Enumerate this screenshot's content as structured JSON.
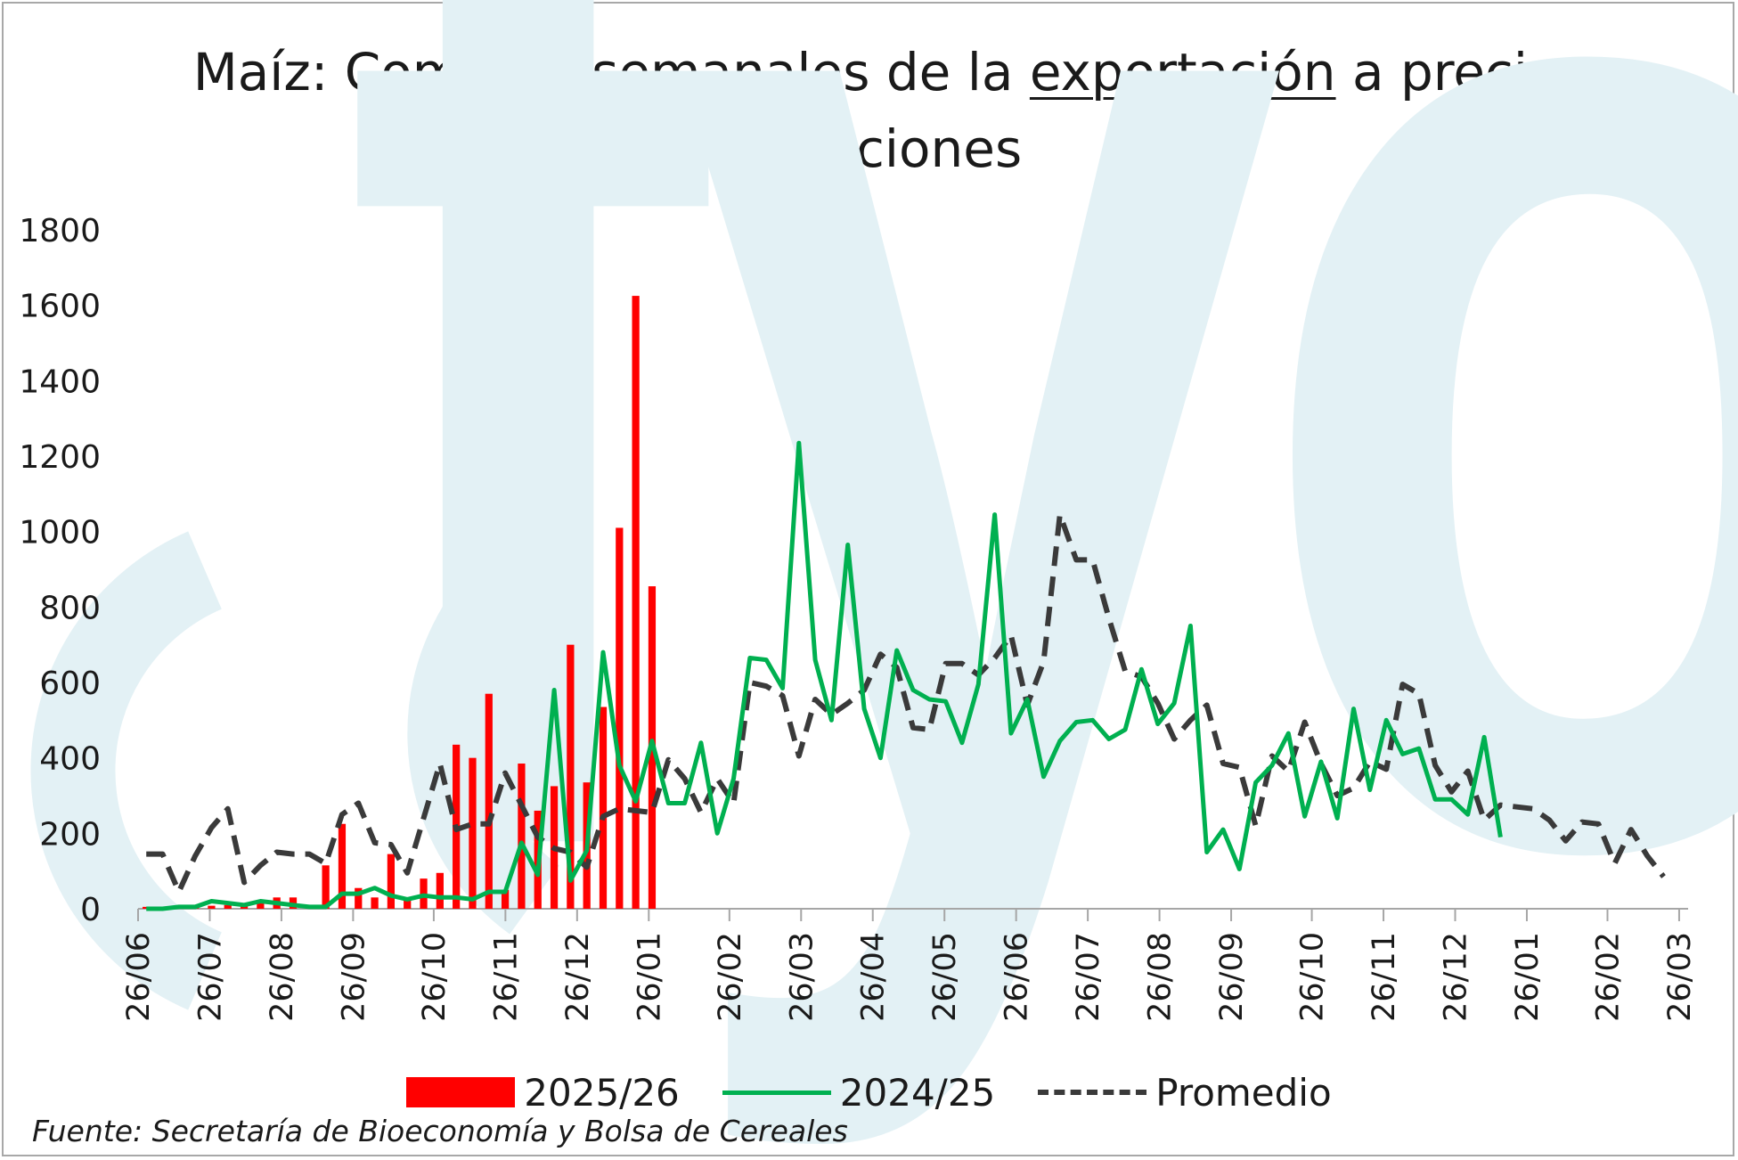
{
  "title_part1": "Maíz: Compras semanales de la ",
  "title_underlined": "exportación",
  "title_part2": " a precio y fijaciones",
  "watermark_text": "fyo",
  "source_note": "Fuente: Secretaría de Bioeconomía y Bolsa de Cereales",
  "colors": {
    "bars": "#ff0000",
    "line_2024_25": "#00b050",
    "line_promedio": "#3a3a3a",
    "watermark": "#e3f1f5",
    "axis": "#a6a6a6"
  },
  "chart_data": {
    "type": "bar",
    "title": "Maíz: Compras semanales de la exportación a precio y fijaciones",
    "xlabel": "",
    "ylabel": "",
    "ylim": [
      0,
      1800
    ],
    "yticks": [
      0,
      200,
      400,
      600,
      800,
      1000,
      1200,
      1400,
      1600,
      1800
    ],
    "x_tick_labels": [
      "26/06",
      "26/07",
      "26/08",
      "26/09",
      "26/10",
      "26/11",
      "26/12",
      "26/01",
      "26/02",
      "26/03",
      "26/04",
      "26/05",
      "26/06",
      "26/07",
      "26/08",
      "26/09",
      "26/10",
      "26/11",
      "26/12",
      "26/01",
      "26/02",
      "26/03"
    ],
    "grid": false,
    "legend_position": "bottom",
    "series": [
      {
        "name": "2025/26",
        "type": "bar",
        "values": [
          5,
          5,
          5,
          5,
          8,
          10,
          15,
          20,
          30,
          30,
          5,
          115,
          225,
          55,
          30,
          145,
          25,
          80,
          95,
          435,
          400,
          570,
          50,
          385,
          260,
          325,
          700,
          335,
          535,
          1010,
          1625,
          855
        ]
      },
      {
        "name": "2024/25",
        "type": "line",
        "values": [
          0,
          0,
          5,
          5,
          20,
          15,
          10,
          20,
          15,
          10,
          5,
          5,
          40,
          40,
          55,
          35,
          25,
          35,
          30,
          30,
          25,
          45,
          45,
          175,
          90,
          580,
          75,
          155,
          680,
          380,
          285,
          445,
          280,
          280,
          440,
          200,
          345,
          665,
          660,
          585,
          1235,
          660,
          500,
          965,
          530,
          400,
          685,
          580,
          555,
          550,
          440,
          595,
          1045,
          465,
          555,
          350,
          445,
          495,
          500,
          450,
          475,
          635,
          490,
          545,
          750,
          150,
          210,
          105,
          335,
          380,
          465,
          245,
          390,
          240,
          530,
          315,
          500,
          410,
          425,
          290,
          290,
          250,
          455,
          190
        ]
      },
      {
        "name": "Promedio",
        "type": "line",
        "values": [
          145,
          145,
          45,
          140,
          215,
          265,
          70,
          115,
          150,
          145,
          145,
          120,
          250,
          280,
          175,
          170,
          95,
          240,
          385,
          210,
          225,
          225,
          360,
          275,
          190,
          160,
          150,
          110,
          245,
          265,
          260,
          255,
          395,
          345,
          255,
          345,
          280,
          600,
          590,
          565,
          405,
          555,
          515,
          545,
          580,
          675,
          640,
          480,
          475,
          650,
          650,
          620,
          665,
          725,
          540,
          655,
          1045,
          925,
          925,
          770,
          630,
          615,
          545,
          450,
          500,
          540,
          385,
          375,
          220,
          405,
          365,
          495,
          385,
          300,
          320,
          390,
          370,
          595,
          570,
          380,
          310,
          365,
          235,
          275,
          270,
          265,
          235,
          180,
          230,
          225,
          120,
          210,
          140,
          85
        ]
      }
    ]
  }
}
